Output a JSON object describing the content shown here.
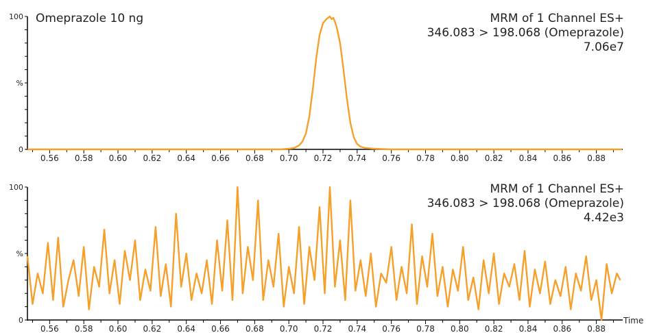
{
  "chart_data": [
    {
      "type": "line",
      "sample_label": "Omeprazole 10 ng",
      "annotation_lines": [
        "MRM of 1 Channel ES+",
        "346.083 > 198.068 (Omeprazole)",
        "7.06e7"
      ],
      "xlabel": "",
      "ylabel": "%",
      "xlim": [
        0.547,
        0.895
      ],
      "ylim": [
        0,
        100
      ],
      "x_ticks": [
        "0.56",
        "0.58",
        "0.60",
        "0.62",
        "0.64",
        "0.66",
        "0.68",
        "0.70",
        "0.72",
        "0.74",
        "0.76",
        "0.78",
        "0.80",
        "0.82",
        "0.84",
        "0.86",
        "0.88"
      ],
      "y_ticks": [
        "0",
        "%",
        "100"
      ],
      "color": "#F5A02A",
      "series": [
        {
          "x": [
            0.547,
            0.69,
            0.695,
            0.7,
            0.703,
            0.706,
            0.708,
            0.71,
            0.712,
            0.714,
            0.716,
            0.718,
            0.72,
            0.722,
            0.723,
            0.724,
            0.725,
            0.726,
            0.727,
            0.728,
            0.73,
            0.732,
            0.734,
            0.736,
            0.738,
            0.74,
            0.742,
            0.745,
            0.75,
            0.76,
            0.895
          ],
          "y": [
            0,
            0,
            0,
            0.5,
            1,
            3,
            6,
            12,
            25,
            45,
            68,
            86,
            95,
            98,
            99,
            100,
            98,
            99,
            96,
            92,
            80,
            60,
            38,
            20,
            9,
            4,
            2,
            1,
            0.5,
            0,
            0
          ]
        }
      ]
    },
    {
      "type": "line",
      "annotation_lines": [
        "MRM of 1 Channel ES+",
        "346.083 > 198.068 (Omeprazole)",
        "4.42e3"
      ],
      "xlabel": "Time",
      "ylabel": "%",
      "xlim": [
        0.547,
        0.895
      ],
      "ylim": [
        0,
        100
      ],
      "x_ticks": [
        "0.56",
        "0.58",
        "0.60",
        "0.62",
        "0.64",
        "0.66",
        "0.68",
        "0.70",
        "0.72",
        "0.74",
        "0.76",
        "0.78",
        "0.80",
        "0.82",
        "0.84",
        "0.86",
        "0.88"
      ],
      "y_ticks": [
        "0",
        "%",
        "100"
      ],
      "color": "#F5A02A",
      "series": [
        {
          "x": [
            0.547,
            0.55,
            0.553,
            0.556,
            0.559,
            0.562,
            0.565,
            0.568,
            0.571,
            0.574,
            0.577,
            0.58,
            0.583,
            0.586,
            0.589,
            0.592,
            0.595,
            0.598,
            0.601,
            0.604,
            0.607,
            0.61,
            0.613,
            0.616,
            0.619,
            0.622,
            0.625,
            0.628,
            0.631,
            0.634,
            0.637,
            0.64,
            0.643,
            0.646,
            0.649,
            0.652,
            0.655,
            0.658,
            0.661,
            0.664,
            0.667,
            0.67,
            0.673,
            0.676,
            0.679,
            0.682,
            0.685,
            0.688,
            0.691,
            0.694,
            0.697,
            0.7,
            0.703,
            0.706,
            0.709,
            0.712,
            0.715,
            0.718,
            0.721,
            0.724,
            0.727,
            0.73,
            0.733,
            0.736,
            0.739,
            0.742,
            0.745,
            0.748,
            0.751,
            0.754,
            0.757,
            0.76,
            0.763,
            0.766,
            0.769,
            0.772,
            0.775,
            0.778,
            0.781,
            0.784,
            0.787,
            0.79,
            0.793,
            0.796,
            0.799,
            0.802,
            0.805,
            0.808,
            0.811,
            0.814,
            0.817,
            0.82,
            0.823,
            0.826,
            0.829,
            0.832,
            0.835,
            0.838,
            0.841,
            0.844,
            0.847,
            0.85,
            0.853,
            0.856,
            0.859,
            0.862,
            0.865,
            0.868,
            0.871,
            0.874,
            0.877,
            0.88,
            0.883,
            0.886,
            0.889,
            0.892,
            0.894
          ],
          "y": [
            48,
            12,
            35,
            20,
            58,
            15,
            62,
            10,
            30,
            45,
            18,
            55,
            8,
            40,
            25,
            68,
            20,
            45,
            12,
            52,
            30,
            60,
            15,
            38,
            22,
            70,
            18,
            42,
            10,
            80,
            25,
            50,
            15,
            35,
            20,
            45,
            12,
            60,
            22,
            75,
            15,
            100,
            20,
            55,
            30,
            90,
            15,
            45,
            25,
            65,
            10,
            40,
            20,
            70,
            12,
            55,
            30,
            85,
            20,
            100,
            25,
            60,
            15,
            90,
            22,
            45,
            18,
            50,
            10,
            35,
            28,
            55,
            15,
            40,
            20,
            72,
            12,
            48,
            25,
            65,
            18,
            40,
            10,
            38,
            22,
            55,
            15,
            32,
            8,
            45,
            20,
            50,
            12,
            35,
            25,
            42,
            15,
            52,
            10,
            38,
            20,
            44,
            12,
            30,
            18,
            40,
            8,
            35,
            22,
            48,
            15,
            30,
            0,
            42,
            20,
            35,
            30
          ]
        }
      ]
    }
  ]
}
